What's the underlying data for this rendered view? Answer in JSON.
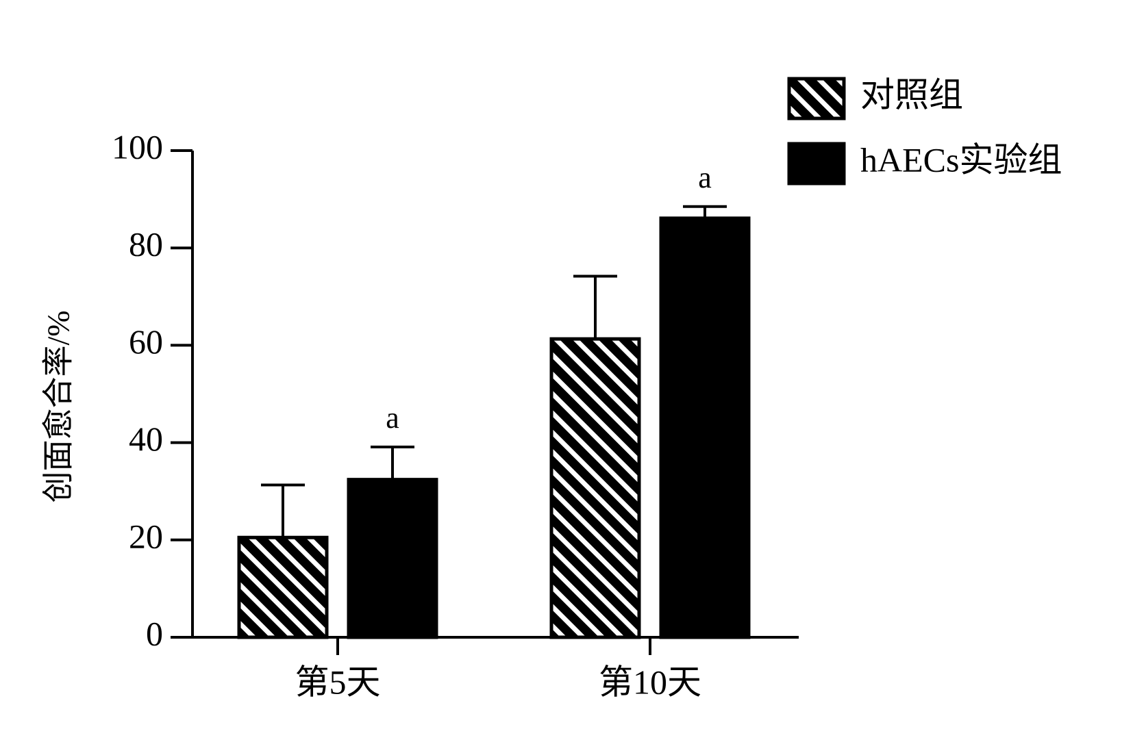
{
  "chart_data": {
    "type": "bar",
    "ylabel": "创面愈合率/%",
    "categories": [
      "第5天",
      "第10天"
    ],
    "series": [
      {
        "name": "对照组",
        "color": "#000000",
        "pattern": "hatch",
        "values": [
          20.5,
          61.3
        ],
        "errors": [
          10.8,
          12.9
        ]
      },
      {
        "name": "hAECs实验组",
        "color": "#000000",
        "values": [
          32.4,
          86.1
        ],
        "errors": [
          6.7,
          2.4
        ],
        "annotations": [
          "a",
          "a"
        ]
      }
    ],
    "ylim": [
      0,
      100
    ],
    "yticks": [
      0,
      20,
      40,
      60,
      80,
      100
    ],
    "legend": "upper right"
  }
}
